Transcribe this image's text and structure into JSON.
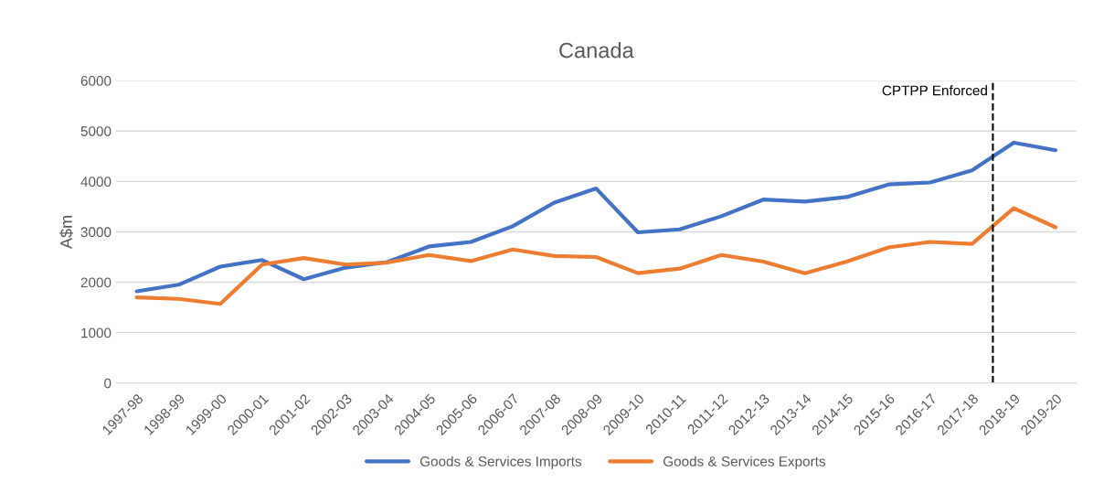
{
  "chart_data": {
    "type": "line",
    "title": "Canada",
    "ylabel": "A$m",
    "categories": [
      "1997-98",
      "1998-99",
      "1999-00",
      "2000-01",
      "2001-02",
      "2002-03",
      "2003-04",
      "2004-05",
      "2005-06",
      "2006-07",
      "2007-08",
      "2008-09",
      "2009-10",
      "2010-11",
      "2011-12",
      "2012-13",
      "2013-14",
      "2014-15",
      "2015-16",
      "2016-17",
      "2017-18",
      "2018-19",
      "2019-20"
    ],
    "series": [
      {
        "name": "Goods & Services Imports",
        "color": "#4472c4",
        "values": [
          1820,
          1950,
          2310,
          2440,
          2060,
          2290,
          2400,
          2710,
          2800,
          3110,
          3580,
          3860,
          2990,
          3050,
          3310,
          3640,
          3600,
          3690,
          3940,
          3980,
          4220,
          4770,
          4620
        ]
      },
      {
        "name": "Goods & Services Exports",
        "color": "#ed7d31",
        "values": [
          1700,
          1670,
          1570,
          2350,
          2480,
          2350,
          2390,
          2540,
          2420,
          2650,
          2520,
          2500,
          2180,
          2270,
          2540,
          2410,
          2180,
          2410,
          2690,
          2800,
          2760,
          3470,
          3090
        ]
      }
    ],
    "ylim": [
      0,
      6000
    ],
    "yticks": [
      0,
      1000,
      2000,
      3000,
      4000,
      5000,
      6000
    ],
    "ref_lines": [
      {
        "axis": "x",
        "value": "2018-19",
        "label": "CPTPP Enforced",
        "color": "#000000",
        "line_style": "dashed"
      }
    ],
    "grid": "y",
    "legend": "bottom",
    "marker": "none",
    "line_style": "solid"
  }
}
